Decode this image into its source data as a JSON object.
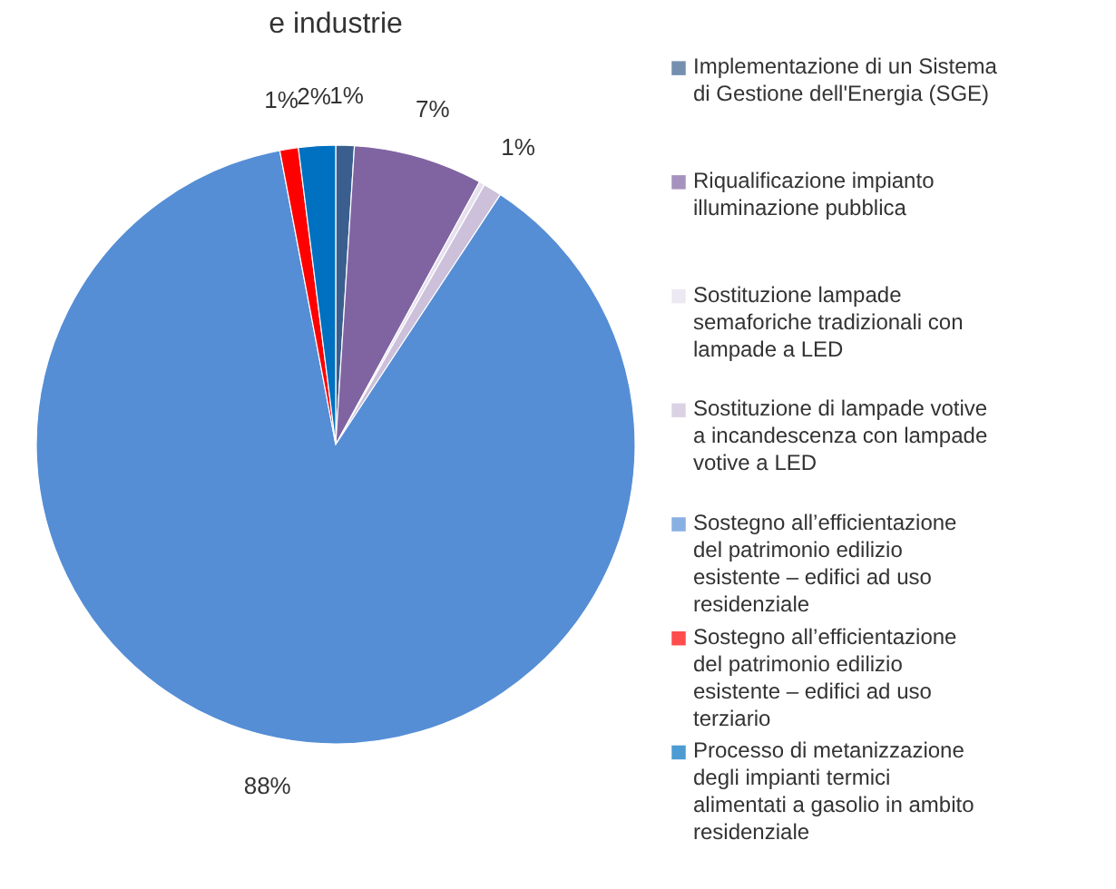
{
  "chart_data": {
    "type": "pie",
    "title": "e industrie",
    "categories": [
      "Implementazione di un Sistema di Gestione dell'Energia (SGE)",
      "Riqualificazione impianto illuminazione pubblica",
      "Sostituzione lampade semaforiche tradizionali con lampade a LED",
      "Sostituzione di lampade votive a incandescenza con lampade votive a LED",
      "Sostegno all’efficientazione del patrimonio edilizio esistente – edifici ad uso residenziale",
      "Sostegno all’efficientazione del patrimonio edilizio esistente – edifici ad uso terziario",
      "Processo di metanizzazione degli impianti termici alimentati a gasolio in ambito residenziale"
    ],
    "values": [
      1,
      7,
      0.3,
      1,
      88,
      1,
      2
    ],
    "value_labels": [
      "1%",
      "7%",
      null,
      "1%",
      "88%",
      "1%",
      "2%"
    ],
    "colors": [
      "#3a5f8f",
      "#8064a2",
      "#e6e0ee",
      "#ccc0da",
      "#558ed5",
      "#ff0000",
      "#0070c0"
    ],
    "legend": "right"
  }
}
